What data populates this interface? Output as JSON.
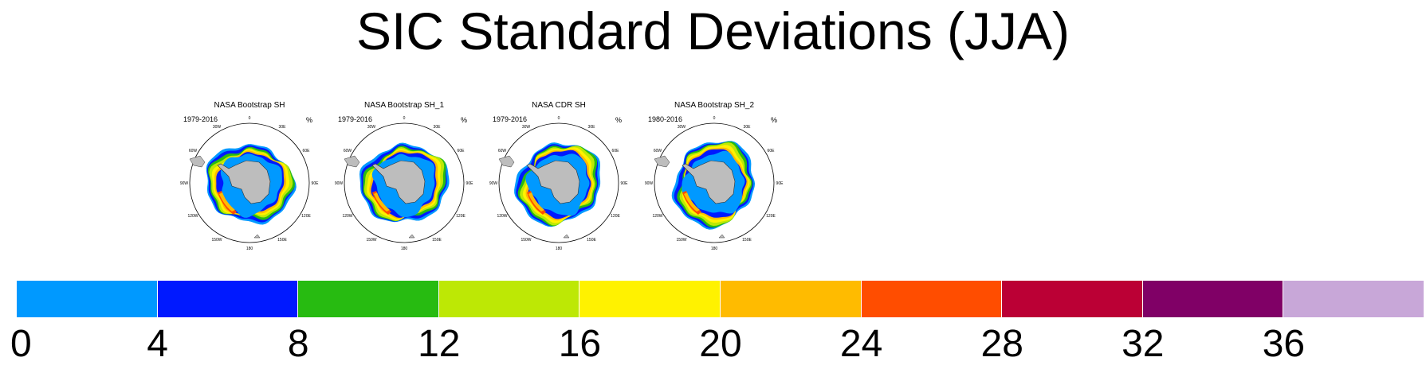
{
  "title": "SIC Standard Deviations (JJA)",
  "panels": [
    {
      "title": "NASA Bootstrap SH",
      "period": "1979-2016",
      "units": "%"
    },
    {
      "title": "NASA Bootstrap SH_1",
      "period": "1979-2016",
      "units": "%"
    },
    {
      "title": "NASA CDR SH",
      "period": "1979-2016",
      "units": "%"
    },
    {
      "title": "NASA Bootstrap SH_2",
      "period": "1980-2016",
      "units": "%"
    }
  ],
  "map_labels": {
    "lon_0": "0",
    "lon_30e": "30E",
    "lon_60e": "60E",
    "lon_90e": "90E",
    "lon_120e": "120E",
    "lon_150e": "150E",
    "lon_180": "180",
    "lon_150w": "150W",
    "lon_120w": "120W",
    "lon_90w": "90W",
    "lon_60w": "60W",
    "lon_30w": "30W"
  },
  "colorbar": {
    "colors": [
      "#0099ff",
      "#0019ff",
      "#27bb11",
      "#bde805",
      "#fff200",
      "#ffbb00",
      "#ff4d00",
      "#bb0035",
      "#800066",
      "#c8a7d8"
    ],
    "labels": [
      "0",
      "4",
      "8",
      "12",
      "16",
      "20",
      "24",
      "28",
      "32",
      "36"
    ]
  },
  "colors": {
    "land": "#bdbdbd",
    "ocean_open": "#ffffff",
    "ice_core": "#0099ff"
  }
}
